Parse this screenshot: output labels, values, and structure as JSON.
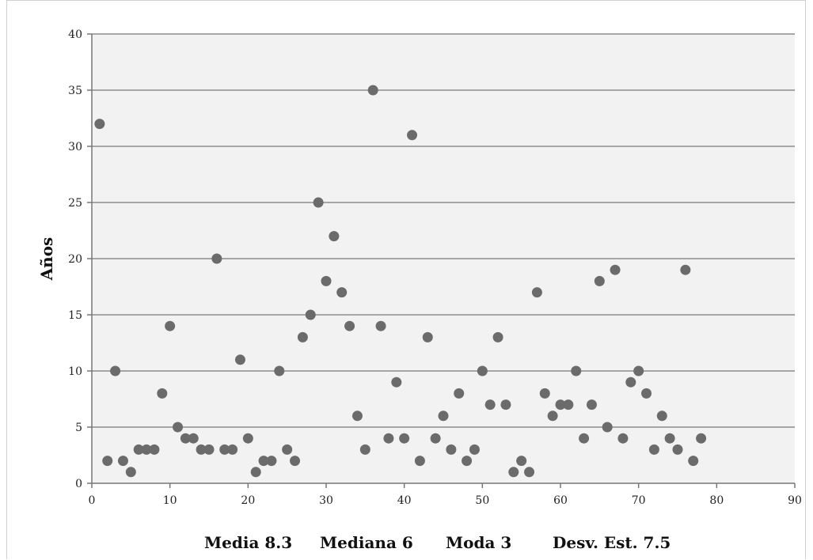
{
  "chart_data": {
    "type": "scatter",
    "title": "",
    "xlabel": "",
    "ylabel": "Años",
    "xlim": [
      0,
      90
    ],
    "ylim": [
      0,
      40
    ],
    "xticks": [
      0,
      10,
      20,
      30,
      40,
      50,
      60,
      70,
      80,
      90
    ],
    "yticks": [
      0,
      5,
      10,
      15,
      20,
      25,
      30,
      35,
      40
    ],
    "grid": "horizontal",
    "marker_color": "#6b6b6b",
    "plot_background": "#f2f2f2",
    "x": [
      1,
      2,
      3,
      4,
      5,
      6,
      7,
      8,
      9,
      10,
      11,
      12,
      13,
      14,
      15,
      16,
      17,
      18,
      19,
      20,
      21,
      22,
      23,
      24,
      25,
      26,
      27,
      28,
      29,
      30,
      31,
      32,
      33,
      34,
      35,
      36,
      37,
      38,
      39,
      40,
      41,
      42,
      43,
      44,
      45,
      46,
      47,
      48,
      49,
      50,
      51,
      52,
      53,
      54,
      55,
      56,
      57,
      58,
      59,
      60,
      61,
      62,
      63,
      64,
      65,
      66,
      67,
      68,
      69,
      70,
      71,
      72,
      73,
      74,
      75,
      76,
      77,
      78
    ],
    "y": [
      32,
      2,
      10,
      2,
      1,
      3,
      3,
      3,
      8,
      14,
      5,
      4,
      4,
      3,
      3,
      20,
      3,
      3,
      11,
      4,
      1,
      2,
      2,
      10,
      3,
      2,
      13,
      15,
      25,
      18,
      22,
      17,
      14,
      6,
      3,
      35,
      14,
      4,
      9,
      4,
      31,
      2,
      13,
      4,
      6,
      3,
      8,
      2,
      3,
      10,
      7,
      13,
      7,
      1,
      2,
      1,
      17,
      8,
      6,
      7,
      7,
      10,
      4,
      7,
      18,
      5,
      19,
      4,
      9,
      10,
      8,
      3,
      6,
      4,
      3,
      19,
      2,
      4
    ]
  },
  "stats": {
    "mean": "Media 8.3",
    "median": "Mediana 6",
    "mode": "Moda 3",
    "stdev": "Desv. Est. 7.5"
  }
}
